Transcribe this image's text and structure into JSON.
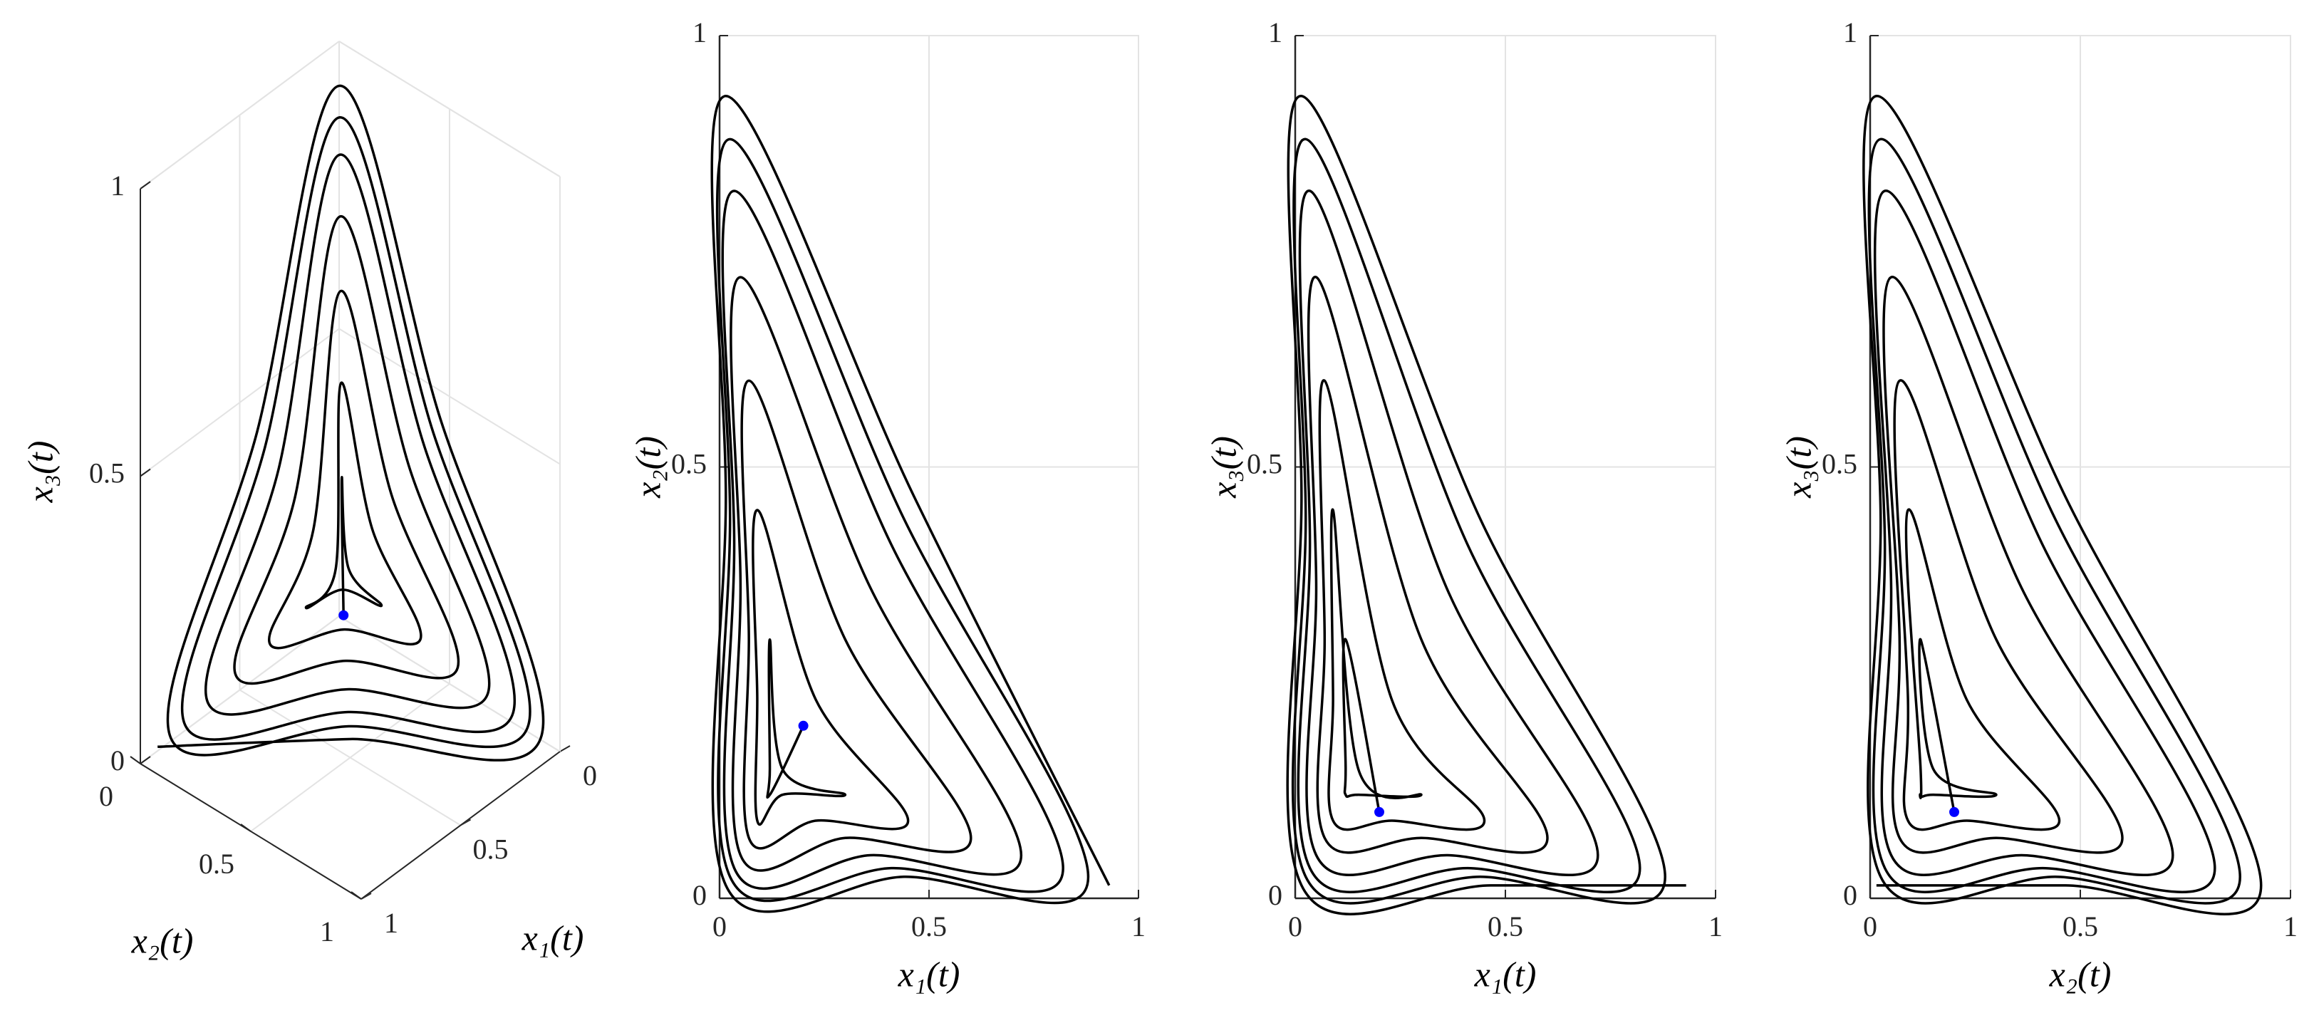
{
  "chart_data": [
    {
      "type": "line3d",
      "xlabel": "x₁(t)",
      "ylabel": "x₂(t)",
      "zlabel": "x₃(t)",
      "xlim": [
        0,
        1
      ],
      "ylim": [
        0,
        1
      ],
      "zlim": [
        0,
        1
      ],
      "xticks": [
        0,
        0.5,
        1
      ],
      "yticks": [
        0,
        0.5,
        1
      ],
      "zticks": [
        0,
        0.5,
        1
      ],
      "grid": true,
      "color": "#000000",
      "start": [
        0.2,
        0.2,
        0.1
      ],
      "start_color": "#0000ff",
      "x": [
        0.2,
        0.12,
        0.12,
        0.12,
        0.15,
        0.3,
        0.15,
        0.09,
        0.09,
        0.09,
        0.23,
        0.45,
        0.23,
        0.07,
        0.07,
        0.07,
        0.3,
        0.6,
        0.3,
        0.05,
        0.05,
        0.05,
        0.36,
        0.72,
        0.36,
        0.035,
        0.035,
        0.035,
        0.41,
        0.82,
        0.41,
        0.025,
        0.025,
        0.025,
        0.44,
        0.88,
        0.44,
        0.015,
        0.015,
        0.015,
        0.465,
        0.93
      ],
      "y": [
        0.2,
        0.12,
        0.15,
        0.3,
        0.15,
        0.12,
        0.12,
        0.09,
        0.23,
        0.45,
        0.23,
        0.09,
        0.09,
        0.07,
        0.3,
        0.6,
        0.3,
        0.07,
        0.07,
        0.05,
        0.36,
        0.72,
        0.36,
        0.05,
        0.05,
        0.035,
        0.41,
        0.82,
        0.41,
        0.035,
        0.035,
        0.025,
        0.44,
        0.88,
        0.44,
        0.025,
        0.025,
        0.015,
        0.465,
        0.93,
        0.465,
        0.015
      ],
      "z": [
        0.1,
        0.3,
        0.15,
        0.12,
        0.12,
        0.12,
        0.15,
        0.45,
        0.23,
        0.09,
        0.09,
        0.09,
        0.23,
        0.6,
        0.3,
        0.07,
        0.07,
        0.07,
        0.3,
        0.72,
        0.36,
        0.05,
        0.05,
        0.05,
        0.36,
        0.82,
        0.41,
        0.035,
        0.035,
        0.035,
        0.41,
        0.88,
        0.44,
        0.025,
        0.025,
        0.025,
        0.44,
        0.93,
        0.465,
        0.015,
        0.015,
        0.015
      ]
    },
    {
      "type": "line",
      "xlabel": "x₁(t)",
      "ylabel": "x₂(t)",
      "xlim": [
        0,
        1
      ],
      "ylim": [
        0,
        1
      ],
      "xticks": [
        0,
        0.5,
        1
      ],
      "yticks": [
        0,
        0.5,
        1
      ],
      "grid": true,
      "color": "#000000",
      "start": [
        0.2,
        0.2
      ],
      "start_color": "#0000ff",
      "x": [
        0.2,
        0.12,
        0.12,
        0.12,
        0.15,
        0.3,
        0.15,
        0.09,
        0.09,
        0.09,
        0.23,
        0.45,
        0.23,
        0.07,
        0.07,
        0.07,
        0.3,
        0.6,
        0.3,
        0.05,
        0.05,
        0.05,
        0.36,
        0.72,
        0.36,
        0.035,
        0.035,
        0.035,
        0.41,
        0.82,
        0.41,
        0.025,
        0.025,
        0.025,
        0.44,
        0.88,
        0.44,
        0.015,
        0.015,
        0.015,
        0.465,
        0.93
      ],
      "y": [
        0.2,
        0.12,
        0.15,
        0.3,
        0.15,
        0.12,
        0.12,
        0.09,
        0.23,
        0.45,
        0.23,
        0.09,
        0.09,
        0.07,
        0.3,
        0.6,
        0.3,
        0.07,
        0.07,
        0.05,
        0.36,
        0.72,
        0.36,
        0.05,
        0.05,
        0.035,
        0.41,
        0.82,
        0.41,
        0.035,
        0.035,
        0.025,
        0.44,
        0.88,
        0.44,
        0.025,
        0.025,
        0.015,
        0.465,
        0.93,
        0.465,
        0.015
      ]
    },
    {
      "type": "line",
      "xlabel": "x₁(t)",
      "ylabel": "x₃(t)",
      "xlim": [
        0,
        1
      ],
      "ylim": [
        0,
        1
      ],
      "xticks": [
        0,
        0.5,
        1
      ],
      "yticks": [
        0,
        0.5,
        1
      ],
      "grid": true,
      "color": "#000000",
      "start": [
        0.2,
        0.1
      ],
      "start_color": "#0000ff",
      "x": [
        0.2,
        0.12,
        0.12,
        0.12,
        0.15,
        0.3,
        0.15,
        0.09,
        0.09,
        0.09,
        0.23,
        0.45,
        0.23,
        0.07,
        0.07,
        0.07,
        0.3,
        0.6,
        0.3,
        0.05,
        0.05,
        0.05,
        0.36,
        0.72,
        0.36,
        0.035,
        0.035,
        0.035,
        0.41,
        0.82,
        0.41,
        0.025,
        0.025,
        0.025,
        0.44,
        0.88,
        0.44,
        0.015,
        0.015,
        0.015,
        0.465,
        0.93
      ],
      "y": [
        0.1,
        0.3,
        0.15,
        0.12,
        0.12,
        0.12,
        0.15,
        0.45,
        0.23,
        0.09,
        0.09,
        0.09,
        0.23,
        0.6,
        0.3,
        0.07,
        0.07,
        0.07,
        0.3,
        0.72,
        0.36,
        0.05,
        0.05,
        0.05,
        0.36,
        0.82,
        0.41,
        0.035,
        0.035,
        0.035,
        0.41,
        0.88,
        0.44,
        0.025,
        0.025,
        0.025,
        0.44,
        0.93,
        0.465,
        0.015,
        0.015,
        0.015
      ]
    },
    {
      "type": "line",
      "xlabel": "x₂(t)",
      "ylabel": "x₃(t)",
      "xlim": [
        0,
        1
      ],
      "ylim": [
        0,
        1
      ],
      "xticks": [
        0,
        0.5,
        1
      ],
      "yticks": [
        0,
        0.5,
        1
      ],
      "grid": true,
      "color": "#000000",
      "start": [
        0.2,
        0.1
      ],
      "start_color": "#0000ff",
      "x": [
        0.2,
        0.12,
        0.15,
        0.3,
        0.15,
        0.12,
        0.12,
        0.09,
        0.23,
        0.45,
        0.23,
        0.09,
        0.09,
        0.07,
        0.3,
        0.6,
        0.3,
        0.07,
        0.07,
        0.05,
        0.36,
        0.72,
        0.36,
        0.05,
        0.05,
        0.035,
        0.41,
        0.82,
        0.41,
        0.035,
        0.035,
        0.025,
        0.44,
        0.88,
        0.44,
        0.025,
        0.025,
        0.015,
        0.465,
        0.93,
        0.465,
        0.015
      ],
      "y": [
        0.1,
        0.3,
        0.15,
        0.12,
        0.12,
        0.12,
        0.15,
        0.45,
        0.23,
        0.09,
        0.09,
        0.09,
        0.23,
        0.6,
        0.3,
        0.07,
        0.07,
        0.07,
        0.3,
        0.72,
        0.36,
        0.05,
        0.05,
        0.05,
        0.36,
        0.82,
        0.41,
        0.035,
        0.035,
        0.035,
        0.41,
        0.88,
        0.44,
        0.025,
        0.025,
        0.025,
        0.44,
        0.93,
        0.465,
        0.015,
        0.015,
        0.015
      ]
    }
  ]
}
